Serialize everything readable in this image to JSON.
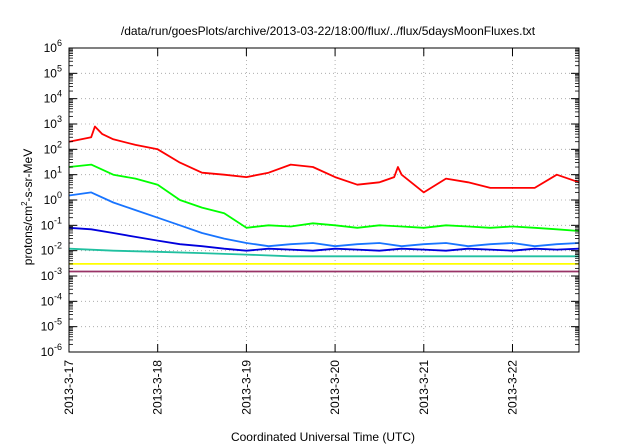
{
  "chart_data": {
    "type": "line",
    "title": "/data/run/goesPlots/archive/2013-03-22/18:00/flux/../flux/5daysMoonFluxes.txt",
    "xlabel": "Coordinated Universal Time (UTC)",
    "ylabel": {
      "prefix": "protons/cm",
      "superscript": "2",
      "suffix": "-s-sr-MeV"
    },
    "y_scale": "log",
    "ylim": [
      1e-06,
      1000000.0
    ],
    "y_ticks": [
      {
        "value": 1e-06,
        "base": "10",
        "exp": "-6"
      },
      {
        "value": 1e-05,
        "base": "10",
        "exp": "-5"
      },
      {
        "value": 0.0001,
        "base": "10",
        "exp": "-4"
      },
      {
        "value": 0.001,
        "base": "10",
        "exp": "-3"
      },
      {
        "value": 0.01,
        "base": "10",
        "exp": "-2"
      },
      {
        "value": 0.1,
        "base": "10",
        "exp": "-1"
      },
      {
        "value": 1.0,
        "base": "10",
        "exp": "0"
      },
      {
        "value": 10.0,
        "base": "10",
        "exp": "1"
      },
      {
        "value": 100.0,
        "base": "10",
        "exp": "2"
      },
      {
        "value": 1000.0,
        "base": "10",
        "exp": "3"
      },
      {
        "value": 10000.0,
        "base": "10",
        "exp": "4"
      },
      {
        "value": 100000.0,
        "base": "10",
        "exp": "5"
      },
      {
        "value": 1000000.0,
        "base": "10",
        "exp": "6"
      }
    ],
    "xlim": [
      "2013-03-17 00:00",
      "2013-03-22 18:00"
    ],
    "x_ticks": [
      "2013-3-17",
      "2013-3-18",
      "2013-3-19",
      "2013-3-20",
      "2013-3-21",
      "2013-3-22"
    ],
    "grid": true,
    "series": [
      {
        "color": "#ff0000",
        "x": [
          "2013-03-17 00:00",
          "2013-03-17 06:00",
          "2013-03-17 07:00",
          "2013-03-17 09:00",
          "2013-03-17 12:00",
          "2013-03-17 18:00",
          "2013-03-18 00:00",
          "2013-03-18 06:00",
          "2013-03-18 12:00",
          "2013-03-18 18:00",
          "2013-03-19 00:00",
          "2013-03-19 06:00",
          "2013-03-19 12:00",
          "2013-03-19 18:00",
          "2013-03-20 00:00",
          "2013-03-20 06:00",
          "2013-03-20 12:00",
          "2013-03-20 16:00",
          "2013-03-20 17:00",
          "2013-03-20 18:00",
          "2013-03-21 00:00",
          "2013-03-21 06:00",
          "2013-03-21 12:00",
          "2013-03-21 18:00",
          "2013-03-22 00:00",
          "2013-03-22 06:00",
          "2013-03-22 12:00",
          "2013-03-22 18:00"
        ],
        "y": [
          200,
          300,
          800,
          400,
          250,
          150,
          100,
          30,
          12,
          10,
          8,
          12,
          25,
          20,
          8,
          4,
          5,
          8,
          20,
          10,
          2,
          7,
          5,
          3,
          3,
          3,
          10,
          5
        ]
      },
      {
        "color": "#00ff00",
        "x": [
          "2013-03-17 00:00",
          "2013-03-17 06:00",
          "2013-03-17 12:00",
          "2013-03-17 18:00",
          "2013-03-18 00:00",
          "2013-03-18 06:00",
          "2013-03-18 12:00",
          "2013-03-18 18:00",
          "2013-03-19 00:00",
          "2013-03-19 06:00",
          "2013-03-19 12:00",
          "2013-03-19 18:00",
          "2013-03-20 00:00",
          "2013-03-20 06:00",
          "2013-03-20 12:00",
          "2013-03-20 18:00",
          "2013-03-21 00:00",
          "2013-03-21 06:00",
          "2013-03-21 12:00",
          "2013-03-21 18:00",
          "2013-03-22 00:00",
          "2013-03-22 06:00",
          "2013-03-22 12:00",
          "2013-03-22 18:00"
        ],
        "y": [
          20,
          25,
          10,
          7,
          4,
          1,
          0.5,
          0.3,
          0.08,
          0.1,
          0.09,
          0.12,
          0.1,
          0.08,
          0.1,
          0.09,
          0.08,
          0.1,
          0.09,
          0.08,
          0.09,
          0.08,
          0.07,
          0.06
        ]
      },
      {
        "color": "#1874ff",
        "x": [
          "2013-03-17 00:00",
          "2013-03-17 06:00",
          "2013-03-17 12:00",
          "2013-03-17 18:00",
          "2013-03-18 00:00",
          "2013-03-18 06:00",
          "2013-03-18 12:00",
          "2013-03-18 18:00",
          "2013-03-19 00:00",
          "2013-03-19 06:00",
          "2013-03-19 12:00",
          "2013-03-19 18:00",
          "2013-03-20 00:00",
          "2013-03-20 06:00",
          "2013-03-20 12:00",
          "2013-03-20 18:00",
          "2013-03-21 00:00",
          "2013-03-21 06:00",
          "2013-03-21 12:00",
          "2013-03-21 18:00",
          "2013-03-22 00:00",
          "2013-03-22 06:00",
          "2013-03-22 12:00",
          "2013-03-22 18:00"
        ],
        "y": [
          1.5,
          2,
          0.8,
          0.4,
          0.2,
          0.1,
          0.05,
          0.03,
          0.02,
          0.015,
          0.018,
          0.02,
          0.015,
          0.018,
          0.02,
          0.015,
          0.018,
          0.02,
          0.015,
          0.018,
          0.02,
          0.015,
          0.018,
          0.02
        ]
      },
      {
        "color": "#0000dd",
        "x": [
          "2013-03-17 00:00",
          "2013-03-17 06:00",
          "2013-03-17 12:00",
          "2013-03-17 18:00",
          "2013-03-18 00:00",
          "2013-03-18 06:00",
          "2013-03-18 12:00",
          "2013-03-18 18:00",
          "2013-03-19 00:00",
          "2013-03-19 06:00",
          "2013-03-19 12:00",
          "2013-03-19 18:00",
          "2013-03-20 00:00",
          "2013-03-20 06:00",
          "2013-03-20 12:00",
          "2013-03-20 18:00",
          "2013-03-21 00:00",
          "2013-03-21 06:00",
          "2013-03-21 12:00",
          "2013-03-21 18:00",
          "2013-03-22 00:00",
          "2013-03-22 06:00",
          "2013-03-22 12:00",
          "2013-03-22 18:00"
        ],
        "y": [
          0.08,
          0.07,
          0.05,
          0.035,
          0.025,
          0.018,
          0.015,
          0.012,
          0.01,
          0.012,
          0.011,
          0.01,
          0.012,
          0.011,
          0.01,
          0.012,
          0.011,
          0.01,
          0.012,
          0.011,
          0.01,
          0.012,
          0.011,
          0.012
        ]
      },
      {
        "color": "#20c0a0",
        "x": [
          "2013-03-17 00:00",
          "2013-03-17 12:00",
          "2013-03-18 00:00",
          "2013-03-18 12:00",
          "2013-03-19 00:00",
          "2013-03-19 12:00",
          "2013-03-20 00:00",
          "2013-03-20 12:00",
          "2013-03-21 00:00",
          "2013-03-21 12:00",
          "2013-03-22 00:00",
          "2013-03-22 12:00",
          "2013-03-22 18:00"
        ],
        "y": [
          0.012,
          0.01,
          0.009,
          0.008,
          0.007,
          0.006,
          0.006,
          0.006,
          0.006,
          0.006,
          0.006,
          0.006,
          0.006
        ]
      },
      {
        "color": "#ffff00",
        "x": [
          "2013-03-17 00:00",
          "2013-03-18 00:00",
          "2013-03-19 00:00",
          "2013-03-20 00:00",
          "2013-03-21 00:00",
          "2013-03-22 00:00",
          "2013-03-22 18:00"
        ],
        "y": [
          0.003,
          0.003,
          0.003,
          0.003,
          0.003,
          0.003,
          0.003
        ]
      },
      {
        "color": "#993366",
        "x": [
          "2013-03-17 00:00",
          "2013-03-18 00:00",
          "2013-03-19 00:00",
          "2013-03-20 00:00",
          "2013-03-21 00:00",
          "2013-03-22 00:00",
          "2013-03-22 18:00"
        ],
        "y": [
          0.0015,
          0.0015,
          0.0015,
          0.0015,
          0.0015,
          0.0015,
          0.0015
        ]
      }
    ]
  }
}
